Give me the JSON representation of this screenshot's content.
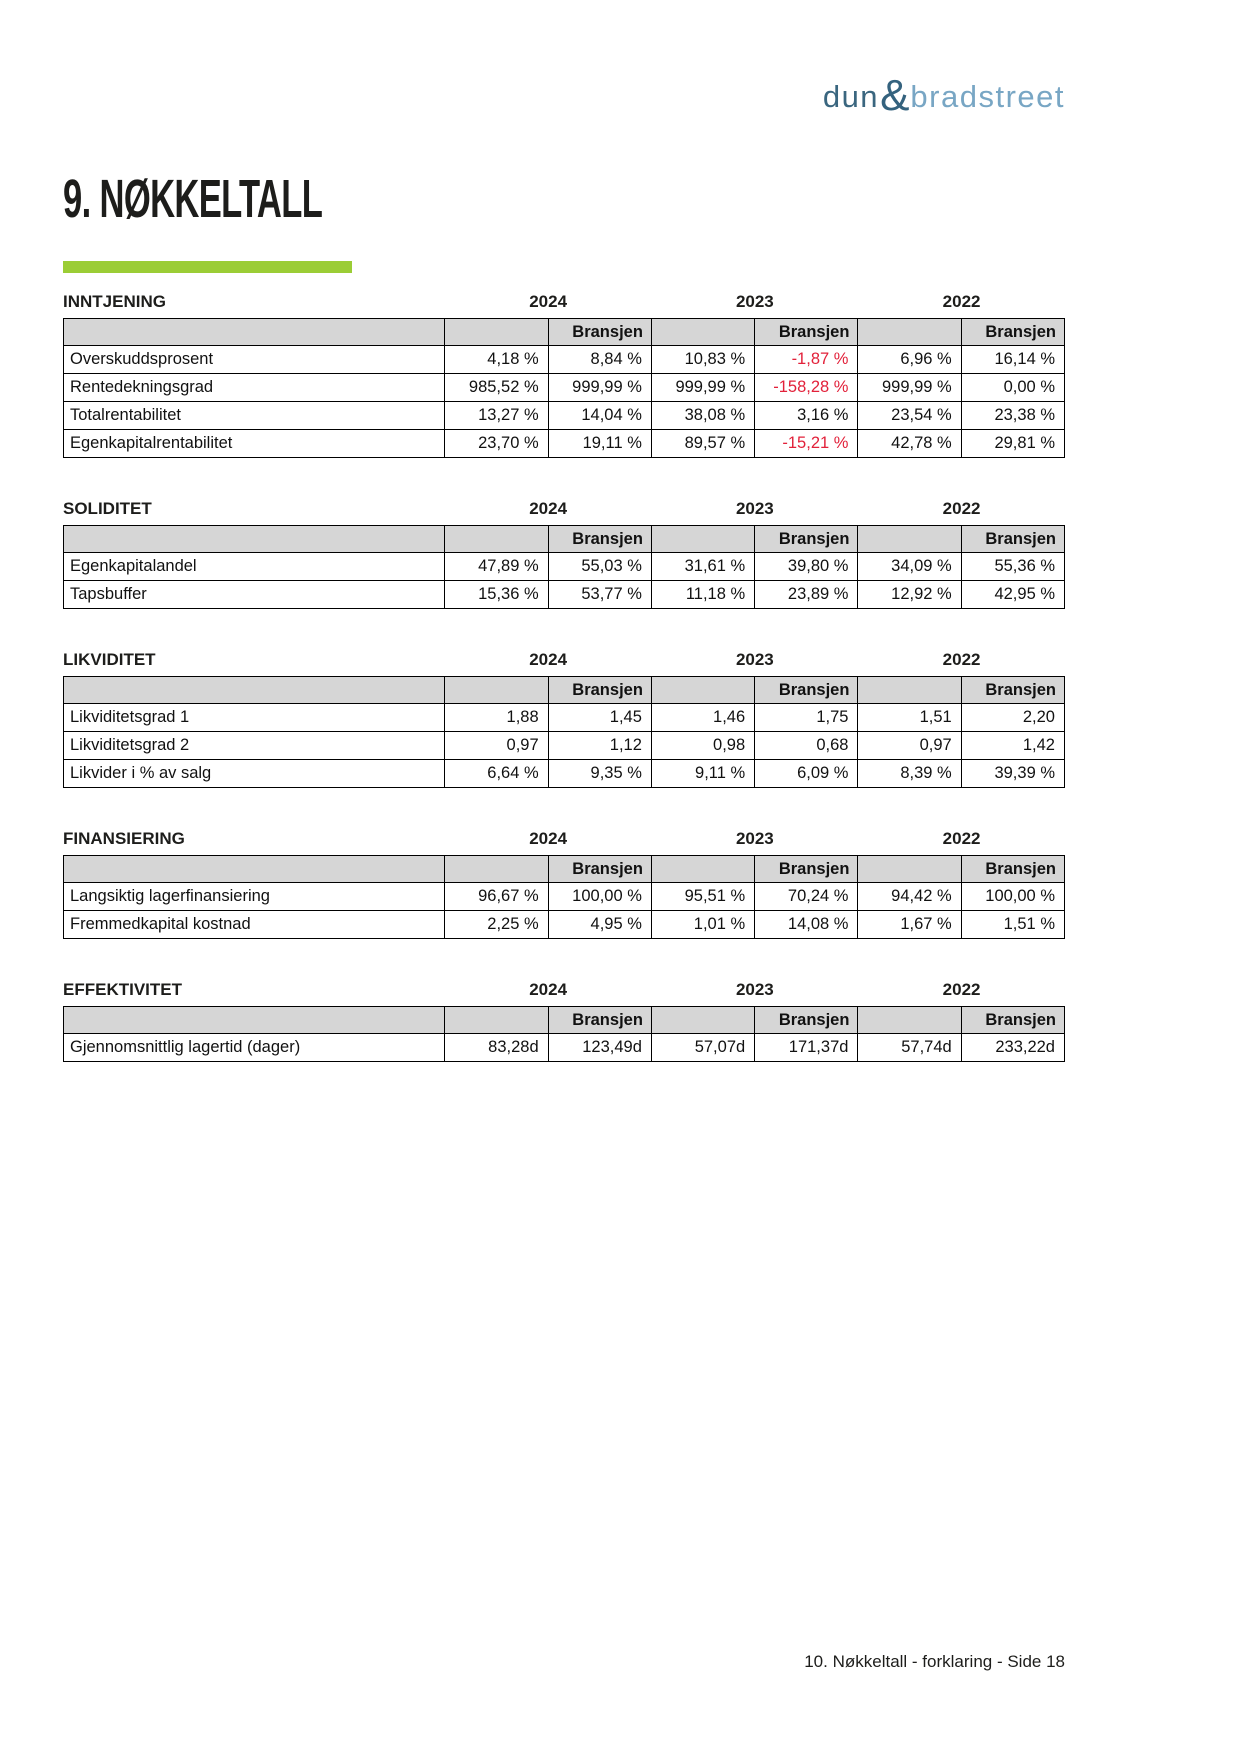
{
  "logo": {
    "dun": "dun",
    "ampersand": "&",
    "bradstreet": "bradstreet"
  },
  "title": "9. NØKKELTALL",
  "years": [
    "2024",
    "2023",
    "2022"
  ],
  "bransjen_label": "Bransjen",
  "sections": [
    {
      "id": "inntjening",
      "title": "INNTJENING",
      "rows": [
        {
          "label": "Overskuddsprosent",
          "values": [
            "4,18 %",
            "8,84 %",
            "10,83 %",
            "-1,87 %",
            "6,96 %",
            "16,14 %"
          ]
        },
        {
          "label": "Rentedekningsgrad",
          "values": [
            "985,52 %",
            "999,99 %",
            "999,99 %",
            "-158,28 %",
            "999,99 %",
            "0,00 %"
          ]
        },
        {
          "label": "Totalrentabilitet",
          "values": [
            "13,27 %",
            "14,04 %",
            "38,08 %",
            "3,16 %",
            "23,54 %",
            "23,38 %"
          ]
        },
        {
          "label": "Egenkapitalrentabilitet",
          "values": [
            "23,70 %",
            "19,11 %",
            "89,57 %",
            "-15,21 %",
            "42,78 %",
            "29,81 %"
          ]
        }
      ]
    },
    {
      "id": "soliditet",
      "title": "SOLIDITET",
      "rows": [
        {
          "label": "Egenkapitalandel",
          "values": [
            "47,89 %",
            "55,03 %",
            "31,61 %",
            "39,80 %",
            "34,09 %",
            "55,36 %"
          ]
        },
        {
          "label": "Tapsbuffer",
          "values": [
            "15,36 %",
            "53,77 %",
            "11,18 %",
            "23,89 %",
            "12,92 %",
            "42,95 %"
          ]
        }
      ]
    },
    {
      "id": "likviditet",
      "title": "LIKVIDITET",
      "rows": [
        {
          "label": "Likviditetsgrad 1",
          "values": [
            "1,88",
            "1,45",
            "1,46",
            "1,75",
            "1,51",
            "2,20"
          ]
        },
        {
          "label": "Likviditetsgrad 2",
          "values": [
            "0,97",
            "1,12",
            "0,98",
            "0,68",
            "0,97",
            "1,42"
          ]
        },
        {
          "label": "Likvider i % av salg",
          "values": [
            "6,64 %",
            "9,35 %",
            "9,11 %",
            "6,09 %",
            "8,39 %",
            "39,39 %"
          ]
        }
      ]
    },
    {
      "id": "finansiering",
      "title": "FINANSIERING",
      "rows": [
        {
          "label": "Langsiktig lagerfinansiering",
          "values": [
            "96,67 %",
            "100,00 %",
            "95,51 %",
            "70,24 %",
            "94,42 %",
            "100,00 %"
          ]
        },
        {
          "label": "Fremmedkapital kostnad",
          "values": [
            "2,25 %",
            "4,95 %",
            "1,01 %",
            "14,08 %",
            "1,67 %",
            "1,51 %"
          ]
        }
      ]
    },
    {
      "id": "effektivitet",
      "title": "EFFEKTIVITET",
      "rows": [
        {
          "label": "Gjennomsnittlig lagertid (dager)",
          "values": [
            "83,28d",
            "123,49d",
            "57,07d",
            "171,37d",
            "57,74d",
            "233,22d"
          ]
        }
      ]
    }
  ],
  "footer": "10. Nøkkeltall - forklaring - Side 18",
  "colors": {
    "accent_green": "#9bcd35",
    "negative_red": "#e2213a",
    "header_grey": "#d6d6d6",
    "logo_dark_blue": "#3a667f",
    "logo_light_blue": "#78a6c4"
  }
}
